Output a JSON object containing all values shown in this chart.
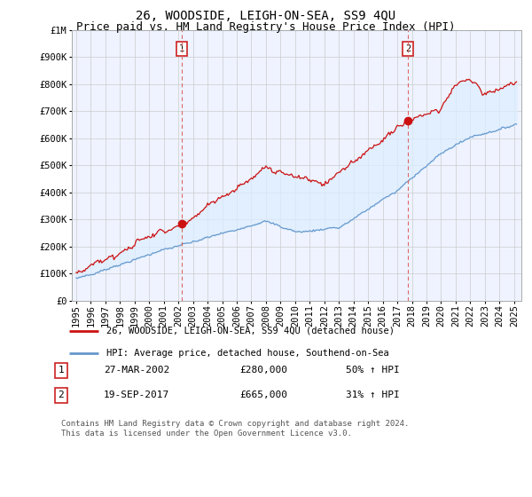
{
  "title": "26, WOODSIDE, LEIGH-ON-SEA, SS9 4QU",
  "subtitle": "Price paid vs. HM Land Registry's House Price Index (HPI)",
  "ylabel_ticks": [
    "£0",
    "£100K",
    "£200K",
    "£300K",
    "£400K",
    "£500K",
    "£600K",
    "£700K",
    "£800K",
    "£900K",
    "£1M"
  ],
  "ytick_values": [
    0,
    100000,
    200000,
    300000,
    400000,
    500000,
    600000,
    700000,
    800000,
    900000,
    1000000
  ],
  "xlim_start": 1994.7,
  "xlim_end": 2025.5,
  "ylim_min": 0,
  "ylim_max": 1000000,
  "red_line_color": "#cc1111",
  "blue_line_color": "#6699cc",
  "fill_color": "#ddeeff",
  "vline_color": "#dd6666",
  "legend_label_red": "26, WOODSIDE, LEIGH-ON-SEA, SS9 4QU (detached house)",
  "legend_label_blue": "HPI: Average price, detached house, Southend-on-Sea",
  "annotation1_date": "27-MAR-2002",
  "annotation1_price": "£280,000",
  "annotation1_hpi": "50% ↑ HPI",
  "annotation1_year": 2002.23,
  "annotation2_date": "19-SEP-2017",
  "annotation2_price": "£665,000",
  "annotation2_hpi": "31% ↑ HPI",
  "annotation2_year": 2017.72,
  "footer": "Contains HM Land Registry data © Crown copyright and database right 2024.\nThis data is licensed under the Open Government Licence v3.0.",
  "background_color": "#f0f4ff",
  "plot_bg_color": "#eef3ff",
  "grid_color": "#cccccc",
  "title_fontsize": 10,
  "subtitle_fontsize": 9,
  "tick_fontsize": 7.5
}
